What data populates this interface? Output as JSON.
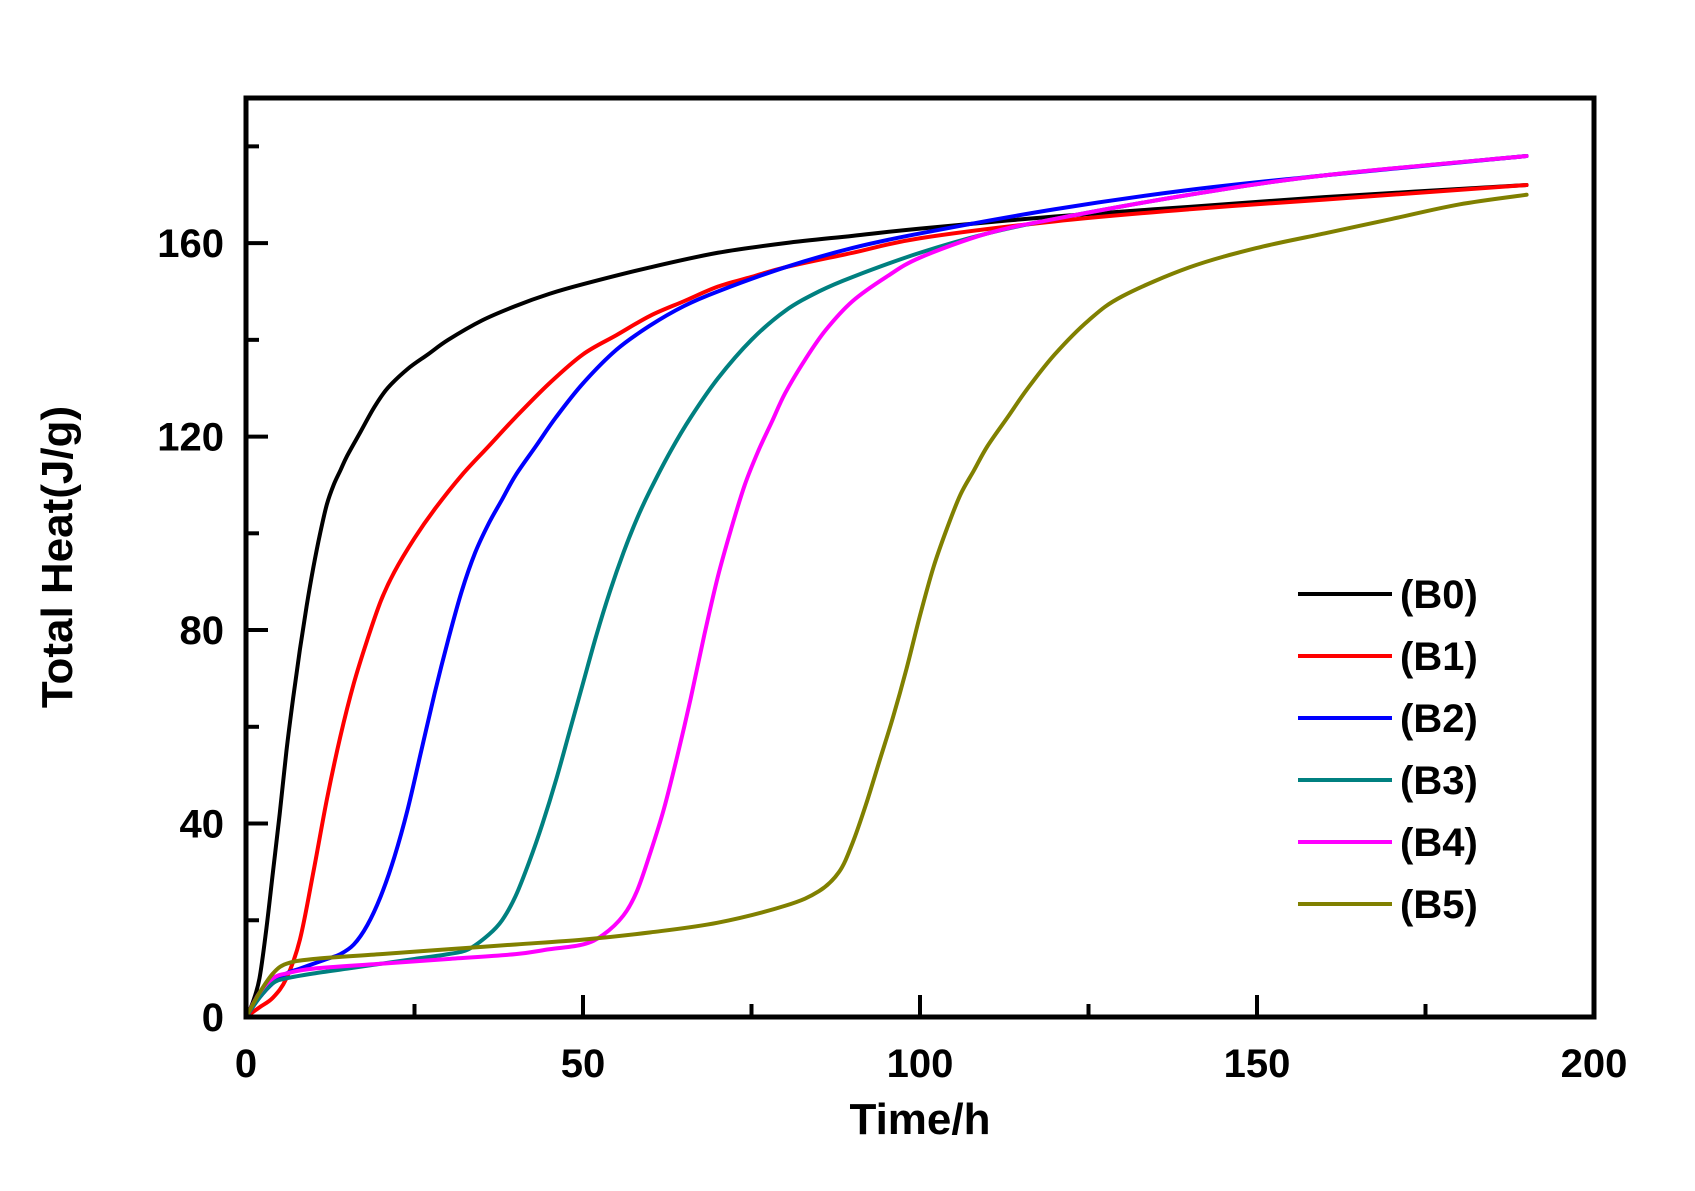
{
  "chart_data": {
    "type": "line",
    "title": "",
    "xlabel": "Time/h",
    "ylabel": "Total Heat(J/g)",
    "xlim": [
      0,
      200
    ],
    "ylim": [
      0,
      190
    ],
    "xticks": [
      0,
      50,
      100,
      150,
      200
    ],
    "xtick_labels": [
      "0",
      "50",
      "100",
      "150",
      "200"
    ],
    "yticks": [
      0,
      40,
      80,
      120,
      160
    ],
    "ytick_labels": [
      "0",
      "40",
      "80",
      "120",
      "160"
    ],
    "grid": false,
    "legend_position": "right-middle",
    "series": [
      {
        "name": "(B0)",
        "color": "#000000",
        "x": [
          0,
          1,
          2,
          3,
          4,
          5,
          6,
          7,
          8,
          9,
          10,
          11,
          12,
          13,
          14,
          15,
          17,
          19,
          21,
          24,
          27,
          30,
          35,
          40,
          45,
          50,
          60,
          70,
          80,
          90,
          100,
          120,
          140,
          160,
          190
        ],
        "y": [
          0,
          3,
          8,
          18,
          30,
          42,
          55,
          66,
          76,
          85,
          93,
          100,
          106,
          110,
          113,
          116,
          121,
          126,
          130,
          134,
          137,
          140,
          144,
          147,
          149.5,
          151.5,
          155,
          158,
          160,
          161.5,
          163,
          165.5,
          167.5,
          169.5,
          172
        ]
      },
      {
        "name": "(B1)",
        "color": "#ff0000",
        "x": [
          0,
          2,
          4,
          6,
          8,
          10,
          12,
          14,
          16,
          18,
          20,
          22,
          25,
          28,
          32,
          36,
          40,
          45,
          50,
          55,
          60,
          65,
          70,
          75,
          80,
          90,
          100,
          120,
          140,
          160,
          190
        ],
        "y": [
          0,
          2,
          4,
          8,
          16,
          30,
          45,
          58,
          69,
          78,
          86,
          92,
          99,
          105,
          112,
          118,
          124,
          131,
          137,
          141,
          145,
          148,
          151,
          153,
          155,
          158,
          161,
          164.5,
          167,
          169,
          172
        ]
      },
      {
        "name": "(B2)",
        "color": "#0000ff",
        "x": [
          0,
          2,
          4,
          6,
          8,
          10,
          12,
          14,
          16,
          18,
          20,
          22,
          24,
          26,
          28,
          30,
          32,
          34,
          36,
          38,
          40,
          43,
          46,
          50,
          55,
          60,
          65,
          70,
          80,
          90,
          100,
          120,
          140,
          160,
          190
        ],
        "y": [
          0,
          4,
          7,
          9,
          10,
          11,
          12,
          13,
          15,
          19,
          25,
          33,
          43,
          55,
          67,
          78,
          88,
          96,
          102,
          107,
          112,
          118,
          124,
          131,
          138,
          143,
          147,
          150,
          155,
          159,
          162,
          167,
          171,
          174,
          178
        ]
      },
      {
        "name": "(B3)",
        "color": "#008080",
        "x": [
          0,
          2,
          4,
          6,
          10,
          15,
          20,
          25,
          30,
          33,
          36,
          38,
          40,
          42,
          44,
          46,
          48,
          50,
          52,
          54,
          56,
          58,
          60,
          63,
          66,
          70,
          75,
          80,
          85,
          90,
          100,
          110,
          120,
          140,
          160,
          190
        ],
        "y": [
          0,
          4,
          7,
          8,
          9,
          10,
          11,
          12,
          13,
          14,
          17,
          20,
          25,
          32,
          40,
          49,
          59,
          69,
          79,
          88,
          96,
          103,
          109,
          117,
          124,
          132,
          140,
          146,
          150,
          153,
          158,
          162,
          165,
          170,
          174,
          178
        ]
      },
      {
        "name": "(B4)",
        "color": "#ff00ff",
        "x": [
          0,
          2,
          4,
          6,
          10,
          20,
          30,
          40,
          45,
          50,
          53,
          56,
          58,
          60,
          62,
          64,
          66,
          68,
          70,
          72,
          74,
          76,
          78,
          80,
          83,
          86,
          90,
          95,
          100,
          110,
          120,
          140,
          160,
          190
        ],
        "y": [
          0,
          5,
          8,
          9,
          10,
          11,
          12,
          13,
          14,
          15,
          17,
          21,
          26,
          34,
          43,
          54,
          66,
          79,
          91,
          101,
          110,
          117,
          123,
          129,
          136,
          142,
          148,
          153,
          157,
          162,
          165,
          170,
          174,
          178
        ]
      },
      {
        "name": "(B5)",
        "color": "#808000",
        "x": [
          0,
          2,
          4,
          6,
          10,
          20,
          30,
          40,
          50,
          60,
          70,
          80,
          85,
          88,
          90,
          92,
          94,
          96,
          98,
          100,
          102,
          104,
          106,
          108,
          110,
          113,
          116,
          120,
          125,
          130,
          140,
          150,
          160,
          170,
          180,
          190
        ],
        "y": [
          0,
          5,
          9,
          11,
          12,
          13,
          14,
          15,
          16,
          17.5,
          19.5,
          23,
          26,
          30,
          36,
          44,
          53,
          62,
          72,
          83,
          93,
          101,
          108,
          113,
          118,
          124,
          130,
          137,
          144,
          149,
          155,
          159,
          162,
          165,
          168,
          170
        ]
      }
    ]
  }
}
